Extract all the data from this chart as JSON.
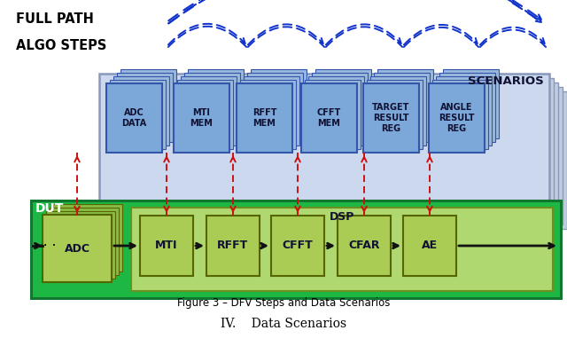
{
  "title_caption": "Figure 3 – DFV Steps and Data Scenarios",
  "section_title": "IV.    Data Scenarios",
  "full_path_label": "FULL PATH",
  "algo_steps_label": "ALGO STEPS",
  "scenarios_label": "SCENARIOS",
  "dut_label": "DUT",
  "dsp_label": "DSP",
  "scenario_boxes": [
    "ADC\nDATA",
    "MTI\nMEM",
    "RFFT\nMEM",
    "CFFT\nMEM",
    "TARGET\nRESULT\nREG",
    "ANGLE\nRESULT\nREG"
  ],
  "dsp_boxes": [
    "MTI",
    "RFFT",
    "CFFT",
    "CFAR",
    "AE"
  ],
  "adc_label": "ADC",
  "bg_color": "#ffffff",
  "scenarios_bg": "#ccd8ee",
  "scenarios_border": "#8899bb",
  "scenarios_stack_bg": "#c0cce0",
  "dut_bg": "#1db843",
  "dut_border": "#117730",
  "dsp_bg": "#b0d870",
  "dsp_border": "#6a9020",
  "scenario_box_bg": "#7ba8d8",
  "scenario_box_border": "#3355aa",
  "scenario_box_stack_bg": "#9ab8dc",
  "dsp_box_bg": "#aacc55",
  "dsp_box_border": "#556600",
  "adc_stack_bg": "#88bb44",
  "arrow_blue": "#1133cc",
  "arrow_red": "#cc1111",
  "arrow_black": "#111111",
  "label_dark": "#111133",
  "white": "#ffffff"
}
